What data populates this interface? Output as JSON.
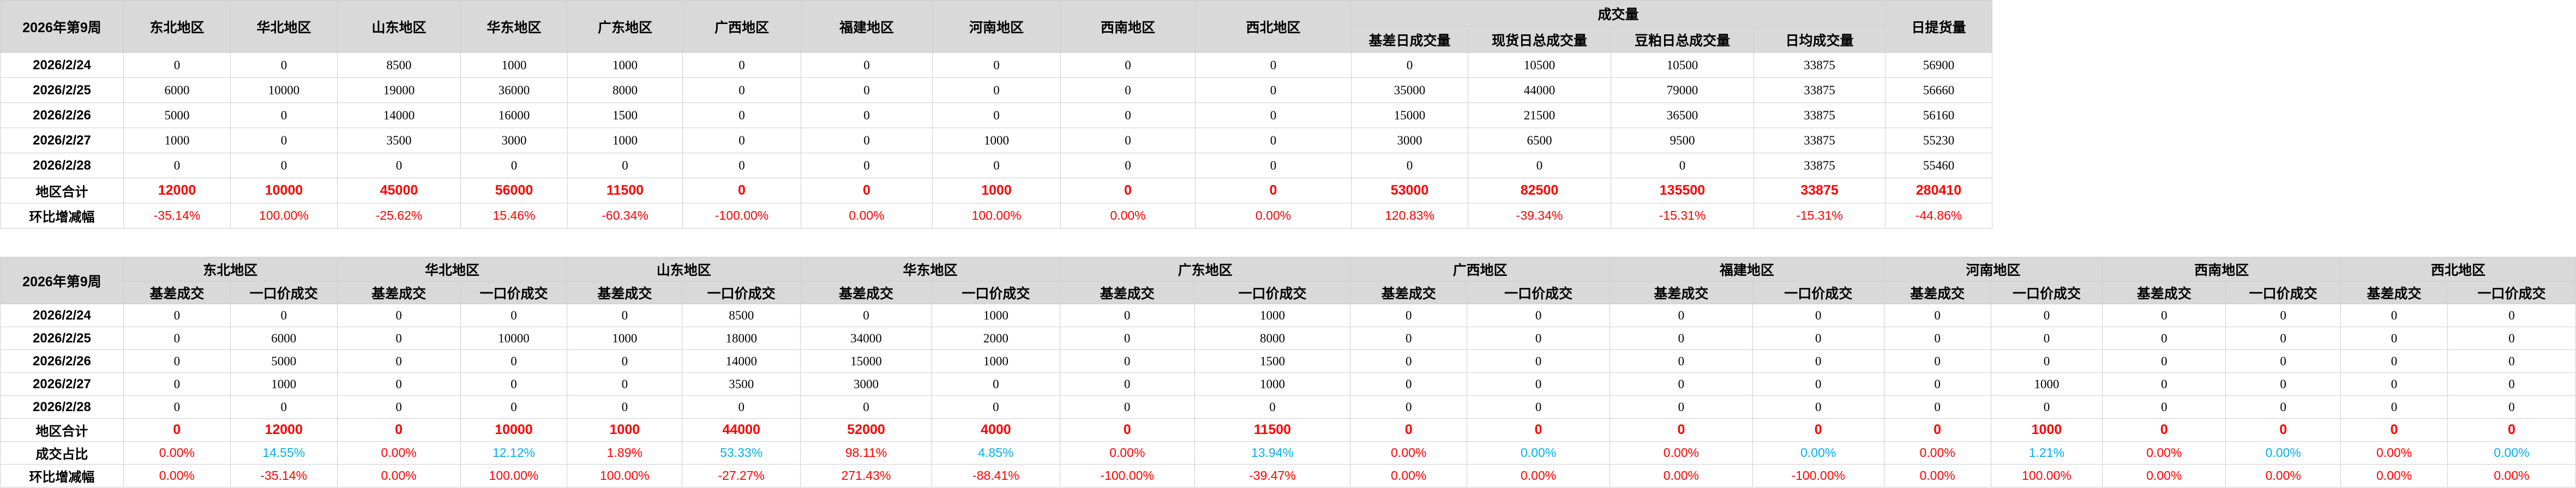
{
  "table1": {
    "corner": "2026年第9周",
    "columns": [
      "东北地区",
      "华北地区",
      "山东地区",
      "华东地区",
      "广东地区",
      "广西地区",
      "福建地区",
      "河南地区",
      "西南地区",
      "西北地区"
    ],
    "group": "成交量",
    "group_columns": [
      "基差日成交量",
      "现货日总成交量",
      "豆粕日总成交量",
      "日均成交量"
    ],
    "last_column": "日提货量",
    "rows": [
      {
        "label": "2026/2/24",
        "values": [
          0,
          0,
          8500,
          1000,
          1000,
          0,
          0,
          0,
          0,
          0,
          0,
          10500,
          10500,
          33875,
          56900
        ]
      },
      {
        "label": "2026/2/25",
        "values": [
          6000,
          10000,
          19000,
          36000,
          8000,
          0,
          0,
          0,
          0,
          0,
          35000,
          44000,
          79000,
          33875,
          56660
        ]
      },
      {
        "label": "2026/2/26",
        "values": [
          5000,
          0,
          14000,
          16000,
          1500,
          0,
          0,
          0,
          0,
          0,
          15000,
          21500,
          36500,
          33875,
          56160
        ]
      },
      {
        "label": "2026/2/27",
        "values": [
          1000,
          0,
          3500,
          3000,
          1000,
          0,
          0,
          1000,
          0,
          0,
          3000,
          6500,
          9500,
          33875,
          55230
        ]
      },
      {
        "label": "2026/2/28",
        "values": [
          0,
          0,
          0,
          0,
          0,
          0,
          0,
          0,
          0,
          0,
          0,
          0,
          0,
          33875,
          55460
        ]
      },
      {
        "label": "地区合计",
        "values": [
          12000,
          10000,
          45000,
          56000,
          11500,
          0,
          0,
          1000,
          0,
          0,
          53000,
          82500,
          135500,
          33875,
          280410
        ]
      },
      {
        "label": "环比增减幅",
        "values": [
          "-35.14%",
          "100.00%",
          "-25.62%",
          "15.46%",
          "-60.34%",
          "-100.00%",
          "0.00%",
          "100.00%",
          "0.00%",
          "0.00%",
          "120.83%",
          "-39.34%",
          "-15.31%",
          "-15.31%",
          "-44.86%"
        ]
      }
    ]
  },
  "table2": {
    "corner": "2026年第9周",
    "regions": [
      "东北地区",
      "华北地区",
      "山东地区",
      "华东地区",
      "广东地区",
      "广西地区",
      "福建地区",
      "河南地区",
      "西南地区",
      "西北地区"
    ],
    "subcolumns": [
      "基差成交",
      "一口价成交"
    ],
    "rows": [
      {
        "label": "2026/2/24",
        "values": [
          0,
          0,
          0,
          0,
          0,
          8500,
          0,
          1000,
          0,
          1000,
          0,
          0,
          0,
          0,
          0,
          0,
          0,
          0,
          0,
          0
        ]
      },
      {
        "label": "2026/2/25",
        "values": [
          0,
          6000,
          0,
          10000,
          1000,
          18000,
          34000,
          2000,
          0,
          8000,
          0,
          0,
          0,
          0,
          0,
          0,
          0,
          0,
          0,
          0
        ]
      },
      {
        "label": "2026/2/26",
        "values": [
          0,
          5000,
          0,
          0,
          0,
          14000,
          15000,
          1000,
          0,
          1500,
          0,
          0,
          0,
          0,
          0,
          0,
          0,
          0,
          0,
          0
        ]
      },
      {
        "label": "2026/2/27",
        "values": [
          0,
          1000,
          0,
          0,
          0,
          3500,
          3000,
          0,
          0,
          1000,
          0,
          0,
          0,
          0,
          0,
          1000,
          0,
          0,
          0,
          0
        ]
      },
      {
        "label": "2026/2/28",
        "values": [
          0,
          0,
          0,
          0,
          0,
          0,
          0,
          0,
          0,
          0,
          0,
          0,
          0,
          0,
          0,
          0,
          0,
          0,
          0,
          0
        ]
      },
      {
        "label": "地区合计",
        "values": [
          0,
          12000,
          0,
          10000,
          1000,
          44000,
          52000,
          4000,
          0,
          11500,
          0,
          0,
          0,
          0,
          0,
          1000,
          0,
          0,
          0,
          0
        ]
      },
      {
        "label": "成交占比",
        "values": [
          "0.00%",
          "14.55%",
          "0.00%",
          "12.12%",
          "1.89%",
          "53.33%",
          "98.11%",
          "4.85%",
          "0.00%",
          "13.94%",
          "0.00%",
          "0.00%",
          "0.00%",
          "0.00%",
          "0.00%",
          "1.21%",
          "0.00%",
          "0.00%",
          "0.00%",
          "0.00%"
        ]
      },
      {
        "label": "环比增减幅",
        "values": [
          "0.00%",
          "-35.14%",
          "0.00%",
          "100.00%",
          "100.00%",
          "-27.27%",
          "271.43%",
          "-88.41%",
          "-100.00%",
          "-39.47%",
          "0.00%",
          "0.00%",
          "0.00%",
          "-100.00%",
          "0.00%",
          "100.00%",
          "0.00%",
          "0.00%",
          "0.00%",
          "0.00%"
        ]
      }
    ]
  }
}
